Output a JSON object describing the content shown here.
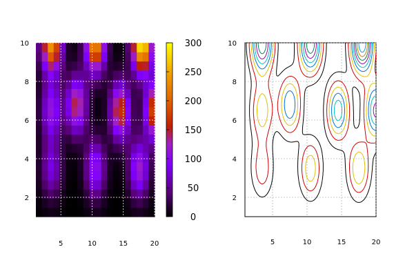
{
  "chart_data": [
    {
      "type": "heatmap",
      "title": "",
      "xlabel": "",
      "ylabel": "",
      "xlim": [
        1,
        20
      ],
      "ylim": [
        1,
        10
      ],
      "x_ticks": [
        5,
        10,
        15,
        20
      ],
      "y_ticks": [
        2,
        4,
        6,
        8,
        10
      ],
      "grid": true,
      "colorbar": {
        "range": [
          0,
          300
        ],
        "ticks": [
          0,
          50,
          100,
          150,
          200,
          250,
          300
        ],
        "palette": [
          "#000000",
          "#5a0078",
          "#8000ff",
          "#a020c0",
          "#c02000",
          "#e06000",
          "#f0a000",
          "#ffff00"
        ]
      },
      "x_range": [
        1,
        20
      ],
      "y_range": [
        1,
        10
      ],
      "grid_size": [
        20,
        19
      ],
      "peaks": [
        {
          "x": 3.5,
          "y": 10,
          "value": 240
        },
        {
          "x": 10.5,
          "y": 10,
          "value": 240
        },
        {
          "x": 18,
          "y": 10,
          "value": 300
        },
        {
          "x": 3.5,
          "y": 6.5,
          "value": 110
        },
        {
          "x": 7.5,
          "y": 6.8,
          "value": 150
        },
        {
          "x": 14.5,
          "y": 6.5,
          "value": 170
        },
        {
          "x": 20,
          "y": 6.5,
          "value": 190
        },
        {
          "x": 3.5,
          "y": 3.5,
          "value": 80
        },
        {
          "x": 10.5,
          "y": 3.5,
          "value": 110
        },
        {
          "x": 17.5,
          "y": 3.5,
          "value": 120
        }
      ]
    },
    {
      "type": "contour",
      "title": "",
      "xlabel": "",
      "ylabel": "",
      "xlim": [
        1,
        20
      ],
      "ylim": [
        1,
        10
      ],
      "x_ticks": [
        5,
        10,
        15,
        20
      ],
      "y_ticks": [
        2,
        4,
        6,
        8,
        10
      ],
      "grid": true,
      "levels": [
        30,
        60,
        90,
        120,
        150,
        180,
        210,
        240,
        270
      ],
      "level_colors": [
        "#000000",
        "#d00000",
        "#e0c000",
        "#0070d0",
        "#00c0c0",
        "#a000a0",
        "#008060",
        "#d08000",
        "#00a0e0"
      ],
      "same_field_as": "heatmap"
    }
  ]
}
